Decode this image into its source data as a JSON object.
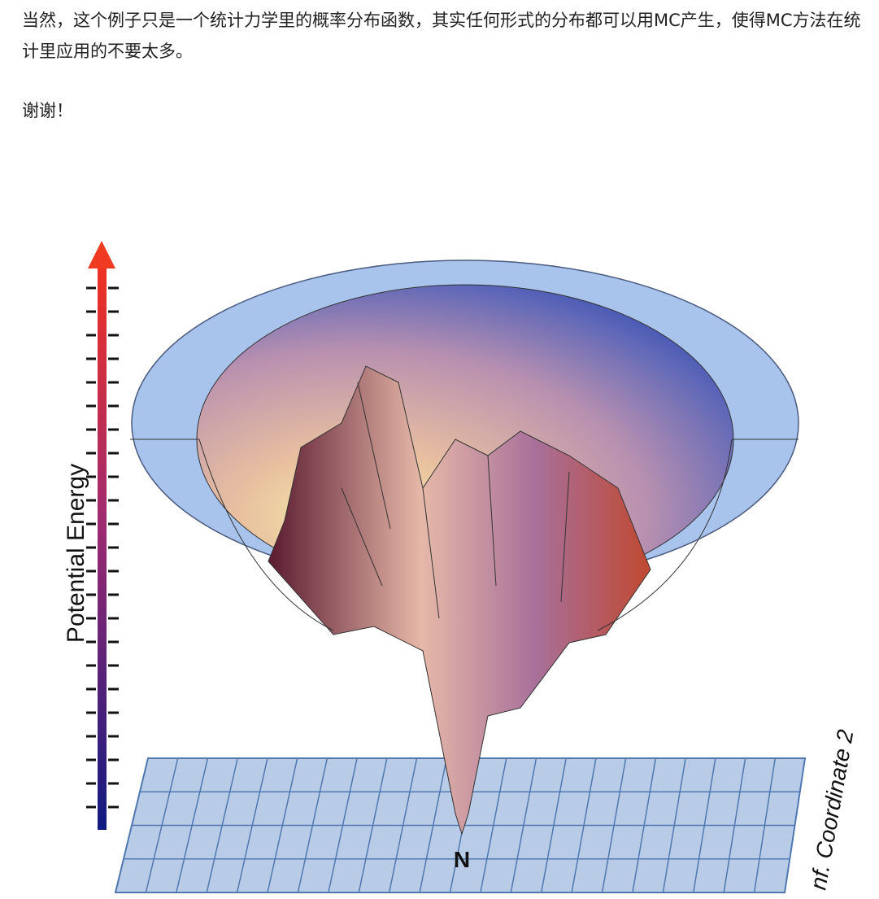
{
  "document": {
    "paragraphs": [
      "当然，这个例子只是一个统计力学里的概率分布函数，其实任何形式的分布都可以用MC产生，使得MC方法在统计里应用的不要太多。",
      "谢谢！"
    ],
    "figure": {
      "y_axis_label": "Potential Energy",
      "point_label": "N",
      "x_axis_label": "nf. Coordinate 2"
    }
  }
}
